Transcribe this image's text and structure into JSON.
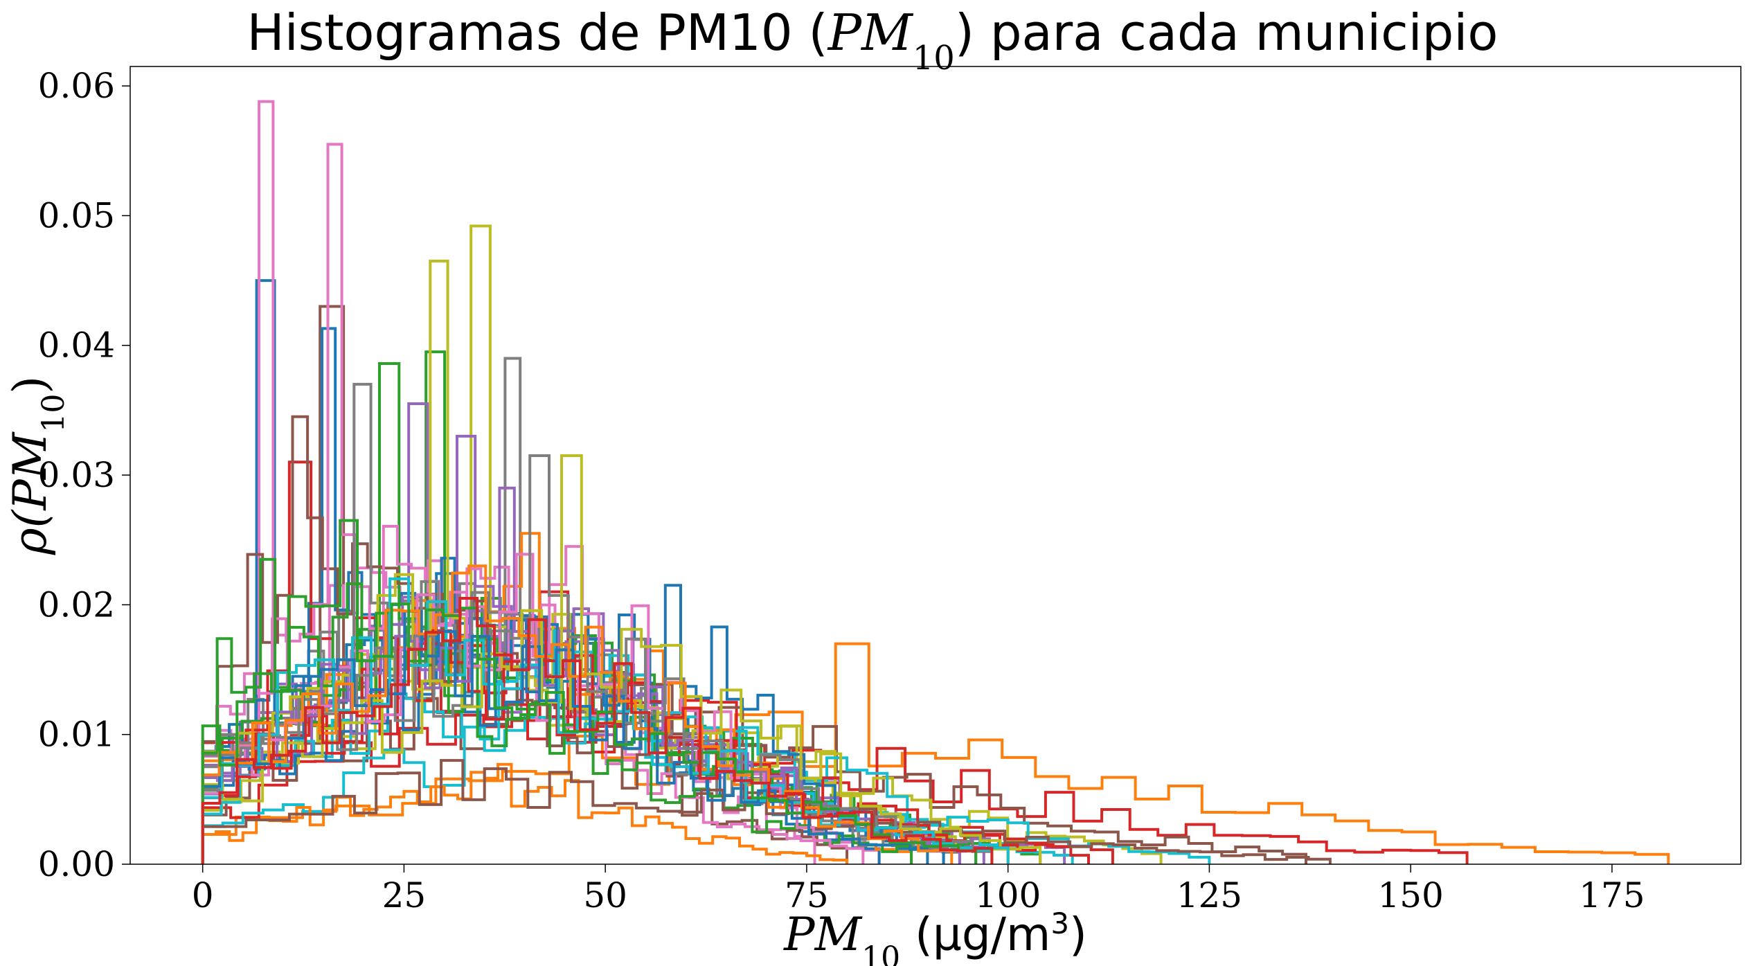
{
  "chart_data": {
    "type": "histogram-step",
    "title": "Histogramas de PM10 (PM10) para cada municipio",
    "xlabel": "PM10 (µg/m3)",
    "ylabel": "ρ(PM10)",
    "xlim": [
      -9,
      191
    ],
    "ylim": [
      0,
      0.0615
    ],
    "xticks": [
      0,
      25,
      50,
      75,
      100,
      125,
      150,
      175
    ],
    "xtick_labels": [
      "0",
      "25",
      "50",
      "75",
      "100",
      "125",
      "150",
      "175"
    ],
    "yticks": [
      0.0,
      0.01,
      0.02,
      0.03,
      0.04,
      0.05,
      0.06
    ],
    "ytick_labels": [
      "0.00",
      "0.01",
      "0.02",
      "0.03",
      "0.04",
      "0.05",
      "0.06"
    ],
    "grid": false,
    "legend": "none",
    "series": [
      {
        "color": "#1f77b4",
        "peak_x": 8.5,
        "peak_y": 0.045,
        "xmax": 96
      },
      {
        "color": "#ff7f0e",
        "peak_x": 79.5,
        "peak_y": 0.017,
        "xmax": 182
      },
      {
        "color": "#2ca02c",
        "peak_x": 28,
        "peak_y": 0.0395,
        "xmax": 104
      },
      {
        "color": "#d62728",
        "peak_x": 42,
        "peak_y": 0.021,
        "xmax": 157
      },
      {
        "color": "#9467bd",
        "peak_x": 26,
        "peak_y": 0.0355,
        "xmax": 107
      },
      {
        "color": "#8c564b",
        "peak_x": 16.5,
        "peak_y": 0.043,
        "xmax": 137
      },
      {
        "color": "#e377c2",
        "peak_x": 8.5,
        "peak_y": 0.0588,
        "xmax": 84
      },
      {
        "color": "#7f7f7f",
        "peak_x": 39,
        "peak_y": 0.039,
        "xmax": 92
      },
      {
        "color": "#bcbd22",
        "peak_x": 34.5,
        "peak_y": 0.0492,
        "xmax": 119
      },
      {
        "color": "#17becf",
        "peak_x": 51,
        "peak_y": 0.013,
        "xmax": 125
      },
      {
        "color": "#1f77b4",
        "peak_x": 16,
        "peak_y": 0.0413,
        "xmax": 84
      },
      {
        "color": "#ff7f0e",
        "peak_x": 40,
        "peak_y": 0.0255,
        "xmax": 88
      },
      {
        "color": "#2ca02c",
        "peak_x": 23,
        "peak_y": 0.0386,
        "xmax": 100
      },
      {
        "color": "#d62728",
        "peak_x": 12,
        "peak_y": 0.031,
        "xmax": 113
      },
      {
        "color": "#9467bd",
        "peak_x": 33,
        "peak_y": 0.033,
        "xmax": 97
      },
      {
        "color": "#8c564b",
        "peak_x": 11.5,
        "peak_y": 0.0345,
        "xmax": 80
      },
      {
        "color": "#e377c2",
        "peak_x": 16.5,
        "peak_y": 0.0555,
        "xmax": 76
      },
      {
        "color": "#7f7f7f",
        "peak_x": 20,
        "peak_y": 0.037,
        "xmax": 94
      },
      {
        "color": "#bcbd22",
        "peak_x": 29.5,
        "peak_y": 0.0465,
        "xmax": 100
      },
      {
        "color": "#17becf",
        "peak_x": 44,
        "peak_y": 0.018,
        "xmax": 108
      },
      {
        "color": "#1f77b4",
        "peak_x": 58,
        "peak_y": 0.0215,
        "xmax": 90
      },
      {
        "color": "#ff7f0e",
        "peak_x": 38,
        "peak_y": 0.0077,
        "xmax": 80
      },
      {
        "color": "#2ca02c",
        "peak_x": 8.5,
        "peak_y": 0.0235,
        "xmax": 88
      },
      {
        "color": "#d62728",
        "peak_x": 30,
        "peak_y": 0.018,
        "xmax": 110
      },
      {
        "color": "#9467bd",
        "peak_x": 38,
        "peak_y": 0.029,
        "xmax": 94
      },
      {
        "color": "#8c564b",
        "peak_x": 32,
        "peak_y": 0.008,
        "xmax": 140
      },
      {
        "color": "#e377c2",
        "peak_x": 46,
        "peak_y": 0.0245,
        "xmax": 82
      },
      {
        "color": "#7f7f7f",
        "peak_x": 41,
        "peak_y": 0.0315,
        "xmax": 98
      },
      {
        "color": "#bcbd22",
        "peak_x": 47,
        "peak_y": 0.0315,
        "xmax": 104
      },
      {
        "color": "#17becf",
        "peak_x": 24,
        "peak_y": 0.022,
        "xmax": 100
      },
      {
        "color": "#1f77b4",
        "peak_x": 26,
        "peak_y": 0.0195,
        "xmax": 92
      },
      {
        "color": "#ff7f0e",
        "peak_x": 35,
        "peak_y": 0.023,
        "xmax": 93
      },
      {
        "color": "#2ca02c",
        "peak_x": 18,
        "peak_y": 0.0265,
        "xmax": 96
      },
      {
        "color": "#d62728",
        "peak_x": 34,
        "peak_y": 0.0205,
        "xmax": 98
      }
    ]
  }
}
